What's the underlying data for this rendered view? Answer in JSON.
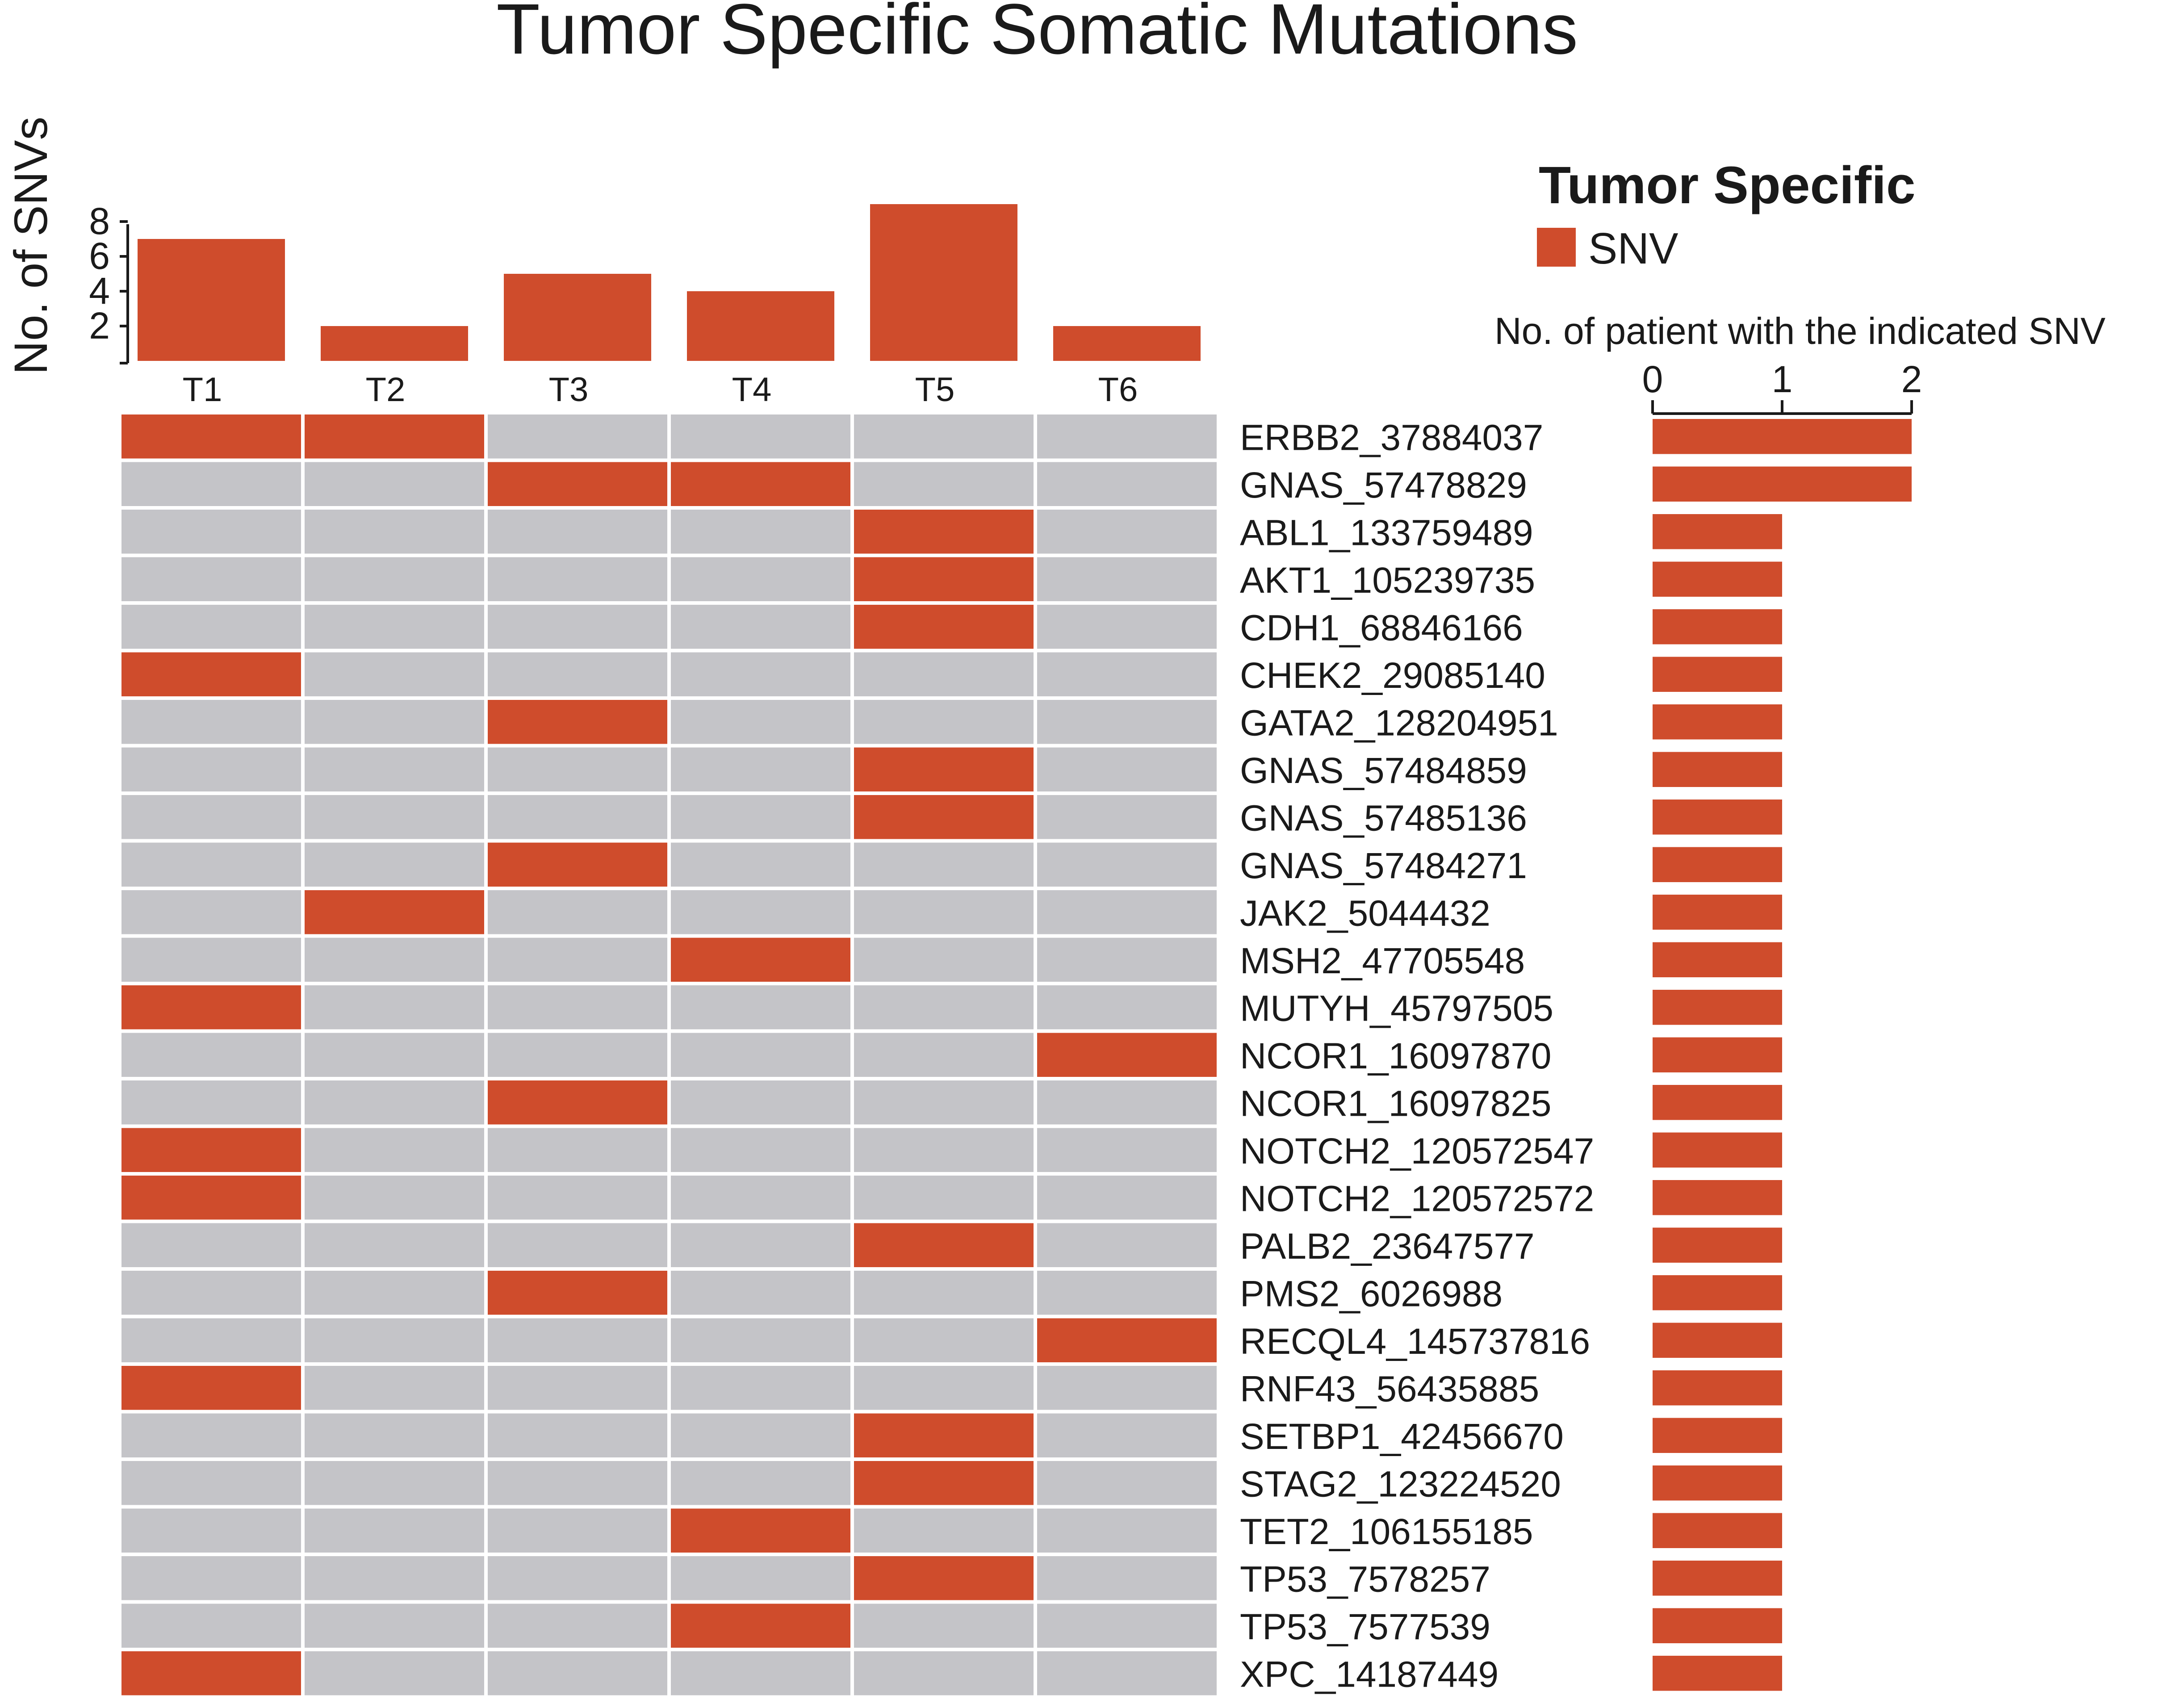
{
  "title": "Tumor Specific Somatic Mutations",
  "colors": {
    "mutated": "#cf4c2c",
    "not_mutated": "#c4c4c8",
    "axis": "#1a1a1a"
  },
  "legend": {
    "title": "Tumor Specific",
    "label": "SNV",
    "color": "#cf4c2c"
  },
  "chart_data": [
    {
      "type": "bar",
      "name": "snv-count-per-tumor",
      "ylabel": "No. of SNVs",
      "categories": [
        "T1",
        "T2",
        "T3",
        "T4",
        "T5",
        "T6"
      ],
      "values": [
        7,
        2,
        5,
        4,
        9,
        2
      ],
      "yticks": [
        2,
        4,
        6,
        8
      ],
      "ylim": [
        0,
        8
      ]
    },
    {
      "type": "heatmap",
      "name": "mutation-matrix",
      "columns": [
        "T1",
        "T2",
        "T3",
        "T4",
        "T5",
        "T6"
      ],
      "rows": [
        "ERBB2_37884037",
        "GNAS_57478829",
        "ABL1_133759489",
        "AKT1_105239735",
        "CDH1_68846166",
        "CHEK2_29085140",
        "GATA2_128204951",
        "GNAS_57484859",
        "GNAS_57485136",
        "GNAS_57484271",
        "JAK2_5044432",
        "MSH2_47705548",
        "MUTYH_45797505",
        "NCOR1_16097870",
        "NCOR1_16097825",
        "NOTCH2_120572547",
        "NOTCH2_120572572",
        "PALB2_23647577",
        "PMS2_6026988",
        "RECQL4_145737816",
        "RNF43_56435885",
        "SETBP1_42456670",
        "STAG2_123224520",
        "TET2_106155185",
        "TP53_7578257",
        "TP53_7577539",
        "XPC_14187449"
      ],
      "values": [
        [
          1,
          1,
          0,
          0,
          0,
          0
        ],
        [
          0,
          0,
          1,
          1,
          0,
          0
        ],
        [
          0,
          0,
          0,
          0,
          1,
          0
        ],
        [
          0,
          0,
          0,
          0,
          1,
          0
        ],
        [
          0,
          0,
          0,
          0,
          1,
          0
        ],
        [
          1,
          0,
          0,
          0,
          0,
          0
        ],
        [
          0,
          0,
          1,
          0,
          0,
          0
        ],
        [
          0,
          0,
          0,
          0,
          1,
          0
        ],
        [
          0,
          0,
          0,
          0,
          1,
          0
        ],
        [
          0,
          0,
          1,
          0,
          0,
          0
        ],
        [
          0,
          1,
          0,
          0,
          0,
          0
        ],
        [
          0,
          0,
          0,
          1,
          0,
          0
        ],
        [
          1,
          0,
          0,
          0,
          0,
          0
        ],
        [
          0,
          0,
          0,
          0,
          0,
          1
        ],
        [
          0,
          0,
          1,
          0,
          0,
          0
        ],
        [
          1,
          0,
          0,
          0,
          0,
          0
        ],
        [
          1,
          0,
          0,
          0,
          0,
          0
        ],
        [
          0,
          0,
          0,
          0,
          1,
          0
        ],
        [
          0,
          0,
          1,
          0,
          0,
          0
        ],
        [
          0,
          0,
          0,
          0,
          0,
          1
        ],
        [
          1,
          0,
          0,
          0,
          0,
          0
        ],
        [
          0,
          0,
          0,
          0,
          1,
          0
        ],
        [
          0,
          0,
          0,
          0,
          1,
          0
        ],
        [
          0,
          0,
          0,
          1,
          0,
          0
        ],
        [
          0,
          0,
          0,
          0,
          1,
          0
        ],
        [
          0,
          0,
          0,
          1,
          0,
          0
        ],
        [
          1,
          0,
          0,
          0,
          0,
          0
        ]
      ]
    },
    {
      "type": "bar",
      "name": "patients-per-snv",
      "orientation": "horizontal",
      "xlabel": "No. of patient with the indicated SNV",
      "xticks": [
        0,
        1,
        2
      ],
      "xlim": [
        0,
        2
      ],
      "values": [
        2,
        2,
        1,
        1,
        1,
        1,
        1,
        1,
        1,
        1,
        1,
        1,
        1,
        1,
        1,
        1,
        1,
        1,
        1,
        1,
        1,
        1,
        1,
        1,
        1,
        1,
        1
      ]
    }
  ]
}
